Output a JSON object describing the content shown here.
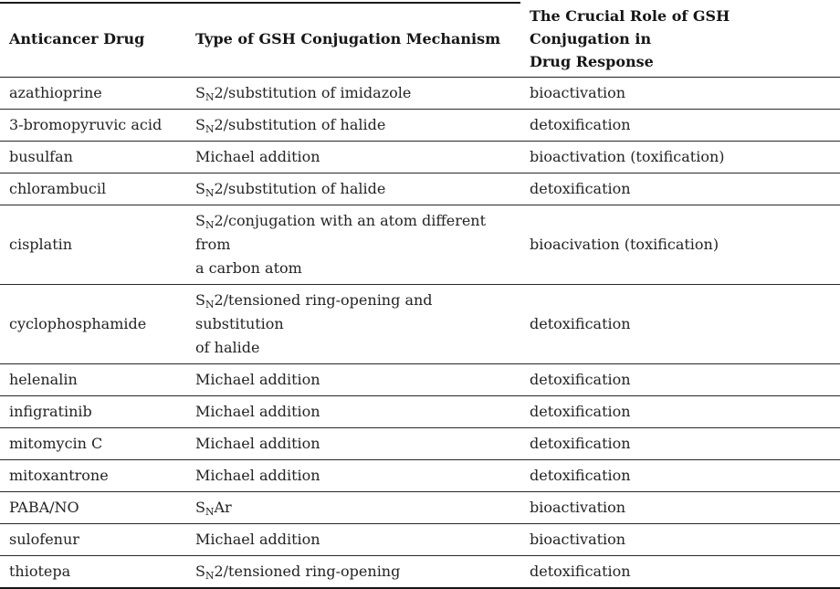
{
  "page": {
    "background_color": "#ffffff",
    "text_color": "#212121",
    "rule_color": "#1a1a1a"
  },
  "table": {
    "columns": [
      {
        "id": "drug",
        "label": "Anticancer Drug"
      },
      {
        "id": "mechanism",
        "label": "Type of GSH Conjugation Mechanism"
      },
      {
        "id": "role",
        "label": "The Crucial Role of GSH Conjugation in\nDrug Response"
      }
    ],
    "rows": [
      {
        "drug": "azathioprine",
        "mechanism": "S[N]2/substitution of imidazole",
        "role": "bioactivation"
      },
      {
        "drug": "3-bromopyruvic acid",
        "mechanism": "S[N]2/substitution of halide",
        "role": "detoxification"
      },
      {
        "drug": "busulfan",
        "mechanism": "Michael addition",
        "role": "bioactivation (toxification)"
      },
      {
        "drug": "chlorambucil",
        "mechanism": "S[N]2/substitution of halide",
        "role": "detoxification"
      },
      {
        "drug": "cisplatin",
        "mechanism": "S[N]2/conjugation with an atom different from\na carbon atom",
        "role": "bioacivation (toxification)"
      },
      {
        "drug": "cyclophosphamide",
        "mechanism": "S[N]2/tensioned ring-opening and substitution\nof halide",
        "role": "detoxification"
      },
      {
        "drug": "helenalin",
        "mechanism": "Michael addition",
        "role": "detoxification"
      },
      {
        "drug": "infigratinib",
        "mechanism": "Michael addition",
        "role": "detoxification"
      },
      {
        "drug": "mitomycin C",
        "mechanism": "Michael addition",
        "role": "detoxification"
      },
      {
        "drug": "mitoxantrone",
        "mechanism": "Michael addition",
        "role": "detoxification"
      },
      {
        "drug": "PABA/NO",
        "mechanism": "S[N]Ar",
        "role": "bioactivation"
      },
      {
        "drug": "sulofenur",
        "mechanism": "Michael addition",
        "role": "bioactivation"
      },
      {
        "drug": "thiotepa",
        "mechanism": "S[N]2/tensioned ring-opening",
        "role": "detoxification"
      }
    ]
  }
}
